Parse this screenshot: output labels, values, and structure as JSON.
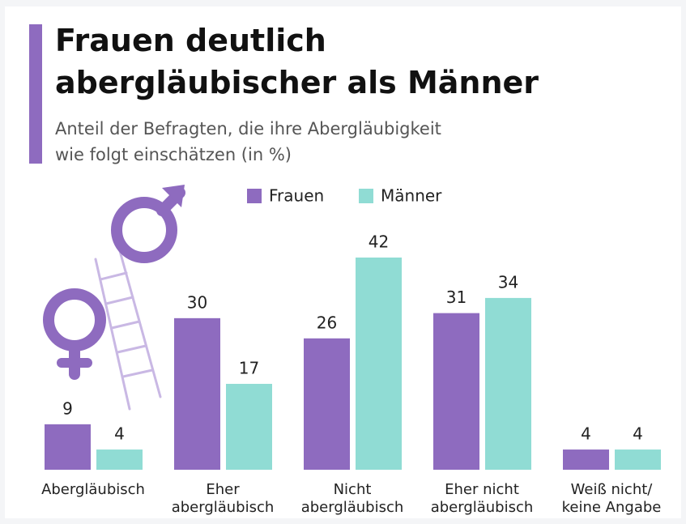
{
  "chart_data": {
    "type": "bar",
    "title": "Frauen deutlich\nabergläubischer als Männer",
    "subtitle": "Anteil der Befragten, die ihre Abergläubigkeit\nwie folgt einschätzen (in %)",
    "categories": [
      "Abergläubisch",
      "Eher\nabergläubisch",
      "Nicht\nabergläubisch",
      "Eher nicht\nabergläubisch",
      "Weiß nicht/\nkeine Angabe"
    ],
    "series": [
      {
        "name": "Frauen",
        "color": "#8e6bbf",
        "values": [
          9,
          30,
          26,
          31,
          4
        ]
      },
      {
        "name": "Männer",
        "color": "#90dcd4",
        "values": [
          4,
          17,
          42,
          34,
          4
        ]
      }
    ]
  }
}
